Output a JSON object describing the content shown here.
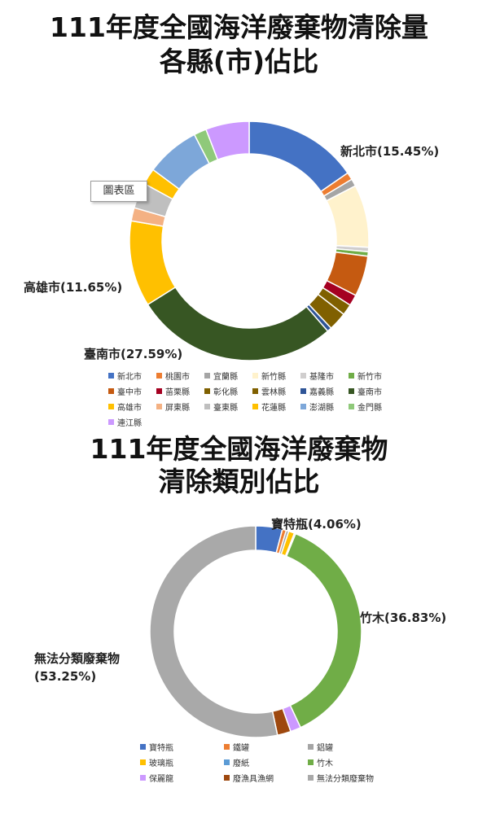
{
  "charts": [
    {
      "title_line1": "111年度全國海洋廢棄物清除量",
      "title_line2": "各縣(市)佔比",
      "tooltip": "圖表區",
      "chart_data": {
        "type": "pie",
        "categories": [
          "新北市",
          "桃園市",
          "宜蘭縣",
          "新竹縣",
          "基隆市",
          "新竹市",
          "臺中市",
          "苗栗縣",
          "彰化縣",
          "雲林縣",
          "嘉義縣",
          "臺南市",
          "高雄市",
          "屏東縣",
          "臺東縣",
          "花蓮縣",
          "澎湖縣",
          "金門縣",
          "連江縣"
        ],
        "values": [
          15.45,
          1.0,
          1.0,
          8.5,
          0.6,
          0.6,
          5.5,
          1.5,
          1.5,
          2.5,
          0.6,
          27.59,
          11.65,
          1.8,
          3.5,
          2.2,
          7.3,
          1.7,
          5.9
        ],
        "colors": [
          "#4472C4",
          "#ED7D31",
          "#A5A5A5",
          "#FFF2CC",
          "#D0CECE",
          "#70AD47",
          "#C55A11",
          "#A50021",
          "#7F6000",
          "#806000",
          "#2F5597",
          "#375623",
          "#FFC000",
          "#F4B183",
          "#BFBFBF",
          "#FFC000",
          "#7DA7D9",
          "#8FC97A",
          "#CC99FF"
        ],
        "data_labels": [
          {
            "name": "新北市",
            "pct": "15.45%"
          },
          {
            "name": "高雄市",
            "pct": "11.65%"
          },
          {
            "name": "臺南市",
            "pct": "27.59%"
          }
        ]
      }
    },
    {
      "title_line1": "111年度全國海洋廢棄物",
      "title_line2": "清除類別佔比",
      "chart_data": {
        "type": "pie",
        "categories": [
          "寶特瓶",
          "鐵罐",
          "鋁罐",
          "玻璃瓶",
          "廢紙",
          "竹木",
          "保麗龍",
          "廢漁具漁網",
          "無法分類廢棄物"
        ],
        "values": [
          4.06,
          0.6,
          0.4,
          0.9,
          0.2,
          36.83,
          1.6,
          2.06,
          53.25
        ],
        "colors": [
          "#4472C4",
          "#ED7D31",
          "#A5A5A5",
          "#FFC000",
          "#5B9BD5",
          "#70AD47",
          "#CC99FF",
          "#9E480E",
          "#A9A9A9"
        ],
        "data_labels": [
          {
            "name": "寶特瓶",
            "pct": "4.06%"
          },
          {
            "name": "竹木",
            "pct": "36.83%"
          },
          {
            "name": "無法分類廢棄物",
            "pct": "53.25%"
          }
        ]
      }
    }
  ]
}
